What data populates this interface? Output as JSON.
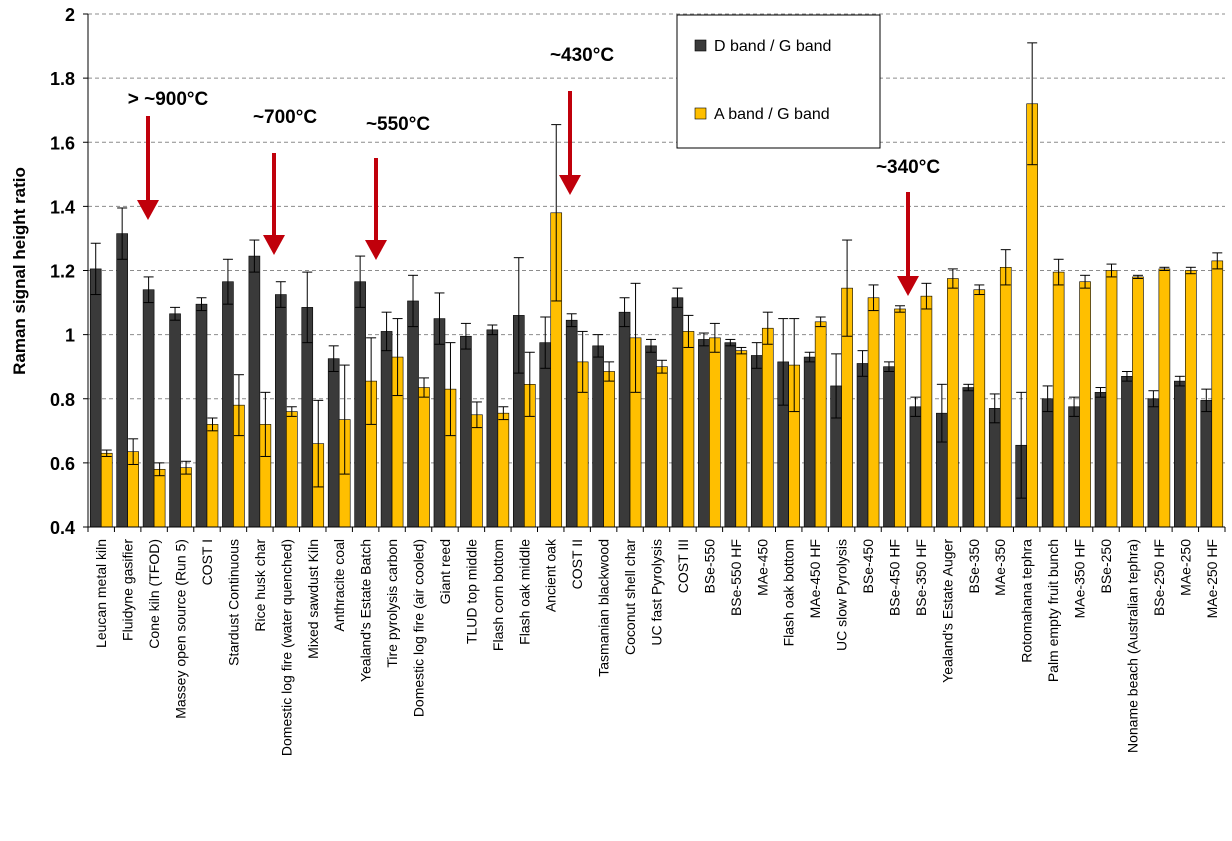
{
  "chart_data": {
    "type": "bar",
    "title": "",
    "xlabel": "",
    "ylabel": "Raman signal height ratio",
    "ylim": [
      0.4,
      2.0
    ],
    "yticks": [
      0.4,
      0.6,
      0.8,
      1.0,
      1.2,
      1.4,
      1.6,
      1.8,
      2.0
    ],
    "ytick_labels": [
      "0.4",
      "0.6",
      "0.8",
      "1",
      "1.2",
      "1.4",
      "1.6",
      "1.8",
      "2"
    ],
    "grid": true,
    "legend_position": "top-center",
    "categories": [
      "Leucan metal kiln",
      "Fluidyne gasifier",
      "Cone kiln (TFOD)",
      "Massey open source (Run 5)",
      "COST I",
      "Stardust Continuous",
      "Rice husk char",
      "Domestic log fire (water quenched)",
      "Mixed sawdust Kiln",
      "Anthracite coal",
      "Yealand's Estate Batch",
      "Tire pyrolysis carbon",
      "Domestic log fire (air cooled)",
      "Giant reed",
      "TLUD top middle",
      "Flash corn bottom",
      "Flash oak middle",
      "Ancient oak",
      "COST II",
      "Tasmanian blackwood",
      "Coconut shell char",
      "UC fast Pyrolysis",
      "COST III",
      "BSe-550",
      "BSe-550 HF",
      "MAe-450",
      "Flash oak bottom",
      "MAe-450 HF",
      "UC slow Pyrolysis",
      "BSe-450",
      "BSe-450 HF",
      "BSe-350 HF",
      "Yealand's Estate Auger",
      "BSe-350",
      "MAe-350",
      "Rotomahana tephra",
      "Palm empty fruit bunch",
      "MAe-350 HF",
      "BSe-250",
      "Noname beach (Australian tephra)",
      "BSe-250 HF",
      "MAe-250",
      "MAe-250 HF"
    ],
    "series": [
      {
        "name": "D band / G band",
        "color": "#3a3a3a",
        "values": [
          1.205,
          1.315,
          1.14,
          1.065,
          1.095,
          1.165,
          1.245,
          1.125,
          1.085,
          0.925,
          1.165,
          1.01,
          1.105,
          1.05,
          0.995,
          1.015,
          1.06,
          0.975,
          1.045,
          0.965,
          1.07,
          0.965,
          1.115,
          0.985,
          0.975,
          0.935,
          0.915,
          0.93,
          0.84,
          0.91,
          0.9,
          0.775,
          0.755,
          0.835,
          0.77,
          0.655,
          0.8,
          0.775,
          0.82,
          0.87,
          0.8,
          0.855,
          0.795
        ],
        "errors": [
          0.08,
          0.08,
          0.04,
          0.02,
          0.02,
          0.07,
          0.05,
          0.04,
          0.11,
          0.04,
          0.08,
          0.06,
          0.08,
          0.08,
          0.04,
          0.015,
          0.18,
          0.08,
          0.02,
          0.035,
          0.045,
          0.02,
          0.03,
          0.02,
          0.01,
          0.04,
          0.135,
          0.015,
          0.1,
          0.04,
          0.015,
          0.03,
          0.09,
          0.01,
          0.045,
          0.165,
          0.04,
          0.03,
          0.015,
          0.015,
          0.025,
          0.015,
          0.035
        ]
      },
      {
        "name": "A band / G band",
        "color": "#ffbf00",
        "values": [
          0.63,
          0.635,
          0.58,
          0.585,
          0.72,
          0.78,
          0.72,
          0.76,
          0.66,
          0.735,
          0.855,
          0.93,
          0.835,
          0.83,
          0.75,
          0.755,
          0.845,
          1.38,
          0.915,
          0.885,
          0.99,
          0.9,
          1.01,
          0.99,
          0.95,
          1.02,
          0.905,
          1.04,
          1.145,
          1.115,
          1.08,
          1.12,
          1.175,
          1.14,
          1.21,
          1.72,
          1.195,
          1.165,
          1.2,
          1.18,
          1.205,
          1.2,
          1.23
        ]
      }
    ],
    "error_bars_series2": [
      0.01,
      0.04,
      0.02,
      0.02,
      0.02,
      0.095,
      0.1,
      0.015,
      0.135,
      0.17,
      0.135,
      0.12,
      0.03,
      0.145,
      0.04,
      0.02,
      0.1,
      0.275,
      0.095,
      0.03,
      0.17,
      0.02,
      0.05,
      0.045,
      0.01,
      0.05,
      0.145,
      0.015,
      0.15,
      0.04,
      0.01,
      0.04,
      0.03,
      0.015,
      0.055,
      0.19,
      0.04,
      0.02,
      0.02,
      0.005,
      0.005,
      0.01,
      0.025
    ],
    "annotations": [
      {
        "label": "> ~900°C",
        "category_index": 1
      },
      {
        "label": "~700°C",
        "category_index": 6
      },
      {
        "label": "~550°C",
        "category_index": 10
      },
      {
        "label": "~430°C",
        "category_index": 17
      },
      {
        "label": "~340°C",
        "category_index": 30
      }
    ],
    "arrow_color": "#c0000b"
  }
}
